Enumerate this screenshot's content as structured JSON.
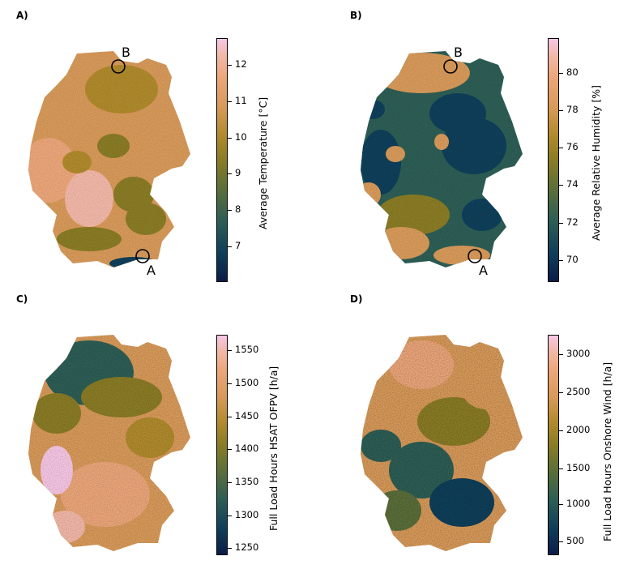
{
  "panels": {
    "A": {
      "letter": "A)",
      "colorbar": {
        "label": "Average Temperature [°C]",
        "ticks": [
          "12",
          "11",
          "10",
          "9",
          "8",
          "7"
        ]
      },
      "markers": [
        "B",
        "A"
      ]
    },
    "B": {
      "letter": "B)",
      "colorbar": {
        "label": "Average Relative Humidity [%]",
        "ticks": [
          "80",
          "78",
          "76",
          "74",
          "72",
          "70"
        ]
      },
      "markers": [
        "B",
        "A"
      ]
    },
    "C": {
      "letter": "C)",
      "colorbar": {
        "label": "Full Load Hours HSAT OFPV [h/a]",
        "ticks": [
          "1550",
          "1500",
          "1450",
          "1400",
          "1350",
          "1300",
          "1250"
        ]
      }
    },
    "D": {
      "letter": "D)",
      "colorbar": {
        "label": "Full Load Hours Onshore Wind [h/a]",
        "ticks": [
          "3000",
          "2500",
          "2000",
          "1500",
          "1000",
          "500"
        ]
      }
    }
  },
  "colormap": [
    "#0b1c48",
    "#0f3f5a",
    "#2d5e55",
    "#5b6f3a",
    "#8a7c25",
    "#b08a2c",
    "#d89a5a",
    "#eca67a",
    "#f2b8a8",
    "#f7c7e5"
  ]
}
